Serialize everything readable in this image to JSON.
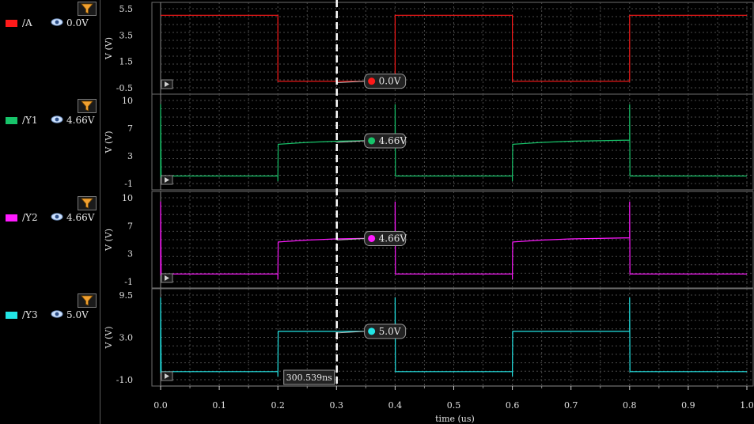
{
  "chart_data": {
    "type": "line",
    "xlabel": "time (us)",
    "xlim": [
      0.0,
      1.0
    ],
    "xticks": [
      "0.0",
      "0.1",
      "0.2",
      "0.3",
      "0.4",
      "0.5",
      "0.6",
      "0.7",
      "0.8",
      "0.9",
      "1.0"
    ],
    "cursor": {
      "x": 0.300539,
      "label": "300.539ns"
    },
    "panels": [
      {
        "name": "/A",
        "color": "#ff1a1a",
        "value": "0.0V",
        "ylabel": "V (V)",
        "ylim": [
          -0.5,
          5.5
        ],
        "yticks": [
          "5.5",
          "3.5",
          "1.5",
          "-0.5"
        ],
        "marker": {
          "x": 0.345,
          "y": 0.0,
          "label": "0.0V"
        },
        "x": [
          0.0,
          0.2,
          0.2,
          0.4,
          0.4,
          0.6,
          0.6,
          0.8,
          0.8,
          1.0
        ],
        "y": [
          5.0,
          5.0,
          0.0,
          0.0,
          5.0,
          5.0,
          0.0,
          0.0,
          5.0,
          5.0
        ]
      },
      {
        "name": "/Y1",
        "color": "#17c46a",
        "value": "4.66V",
        "ylabel": "V (V)",
        "ylim": [
          -1,
          10
        ],
        "yticks": [
          "10",
          "7",
          "3",
          "-1"
        ],
        "marker": {
          "x": 0.345,
          "y": 4.66,
          "label": "4.66V"
        },
        "x": [
          0.0,
          0.0,
          0.001,
          0.2,
          0.2,
          0.2005,
          0.25,
          0.3,
          0.4,
          0.4,
          0.4005,
          0.6,
          0.6,
          0.6005,
          0.65,
          0.7,
          0.8,
          0.8,
          0.8005,
          1.0
        ],
        "y": [
          -0.2,
          9.5,
          0.0,
          0.0,
          -0.7,
          4.2,
          4.45,
          4.6,
          4.75,
          9.5,
          0.0,
          0.0,
          -0.7,
          4.2,
          4.45,
          4.6,
          4.75,
          9.5,
          0.0,
          0.0
        ]
      },
      {
        "name": "/Y2",
        "color": "#ff1aff",
        "value": "4.66V",
        "ylabel": "V (V)",
        "ylim": [
          -1,
          10
        ],
        "yticks": [
          "10",
          "7",
          "3",
          "-1"
        ],
        "marker": {
          "x": 0.345,
          "y": 4.66,
          "label": "4.66V"
        },
        "x": [
          0.0,
          0.0,
          0.001,
          0.2,
          0.2,
          0.2005,
          0.25,
          0.3,
          0.4,
          0.4,
          0.4005,
          0.6,
          0.6,
          0.6005,
          0.65,
          0.7,
          0.8,
          0.8,
          0.8005,
          1.0
        ],
        "y": [
          -0.2,
          9.5,
          0.0,
          0.0,
          -0.7,
          4.2,
          4.45,
          4.6,
          4.75,
          9.5,
          0.0,
          0.0,
          -0.7,
          4.2,
          4.45,
          4.6,
          4.75,
          9.5,
          0.0,
          0.0
        ]
      },
      {
        "name": "/Y3",
        "color": "#22e6e6",
        "value": "5.0V",
        "ylabel": "V (V)",
        "ylim": [
          -1.0,
          9.5
        ],
        "yticks": [
          "9.5",
          "3.0",
          "-1.0"
        ],
        "marker": {
          "x": 0.345,
          "y": 5.0,
          "label": "5.0V"
        },
        "x": [
          0.0,
          0.0,
          0.001,
          0.2,
          0.2,
          0.2005,
          0.4,
          0.4,
          0.4005,
          0.6,
          0.6,
          0.6005,
          0.8,
          0.8,
          0.8005,
          1.0
        ],
        "y": [
          -0.2,
          9.2,
          0.0,
          0.0,
          -0.6,
          5.0,
          5.0,
          9.2,
          0.0,
          0.0,
          -0.6,
          5.0,
          5.0,
          9.2,
          0.0,
          0.0
        ]
      }
    ]
  }
}
